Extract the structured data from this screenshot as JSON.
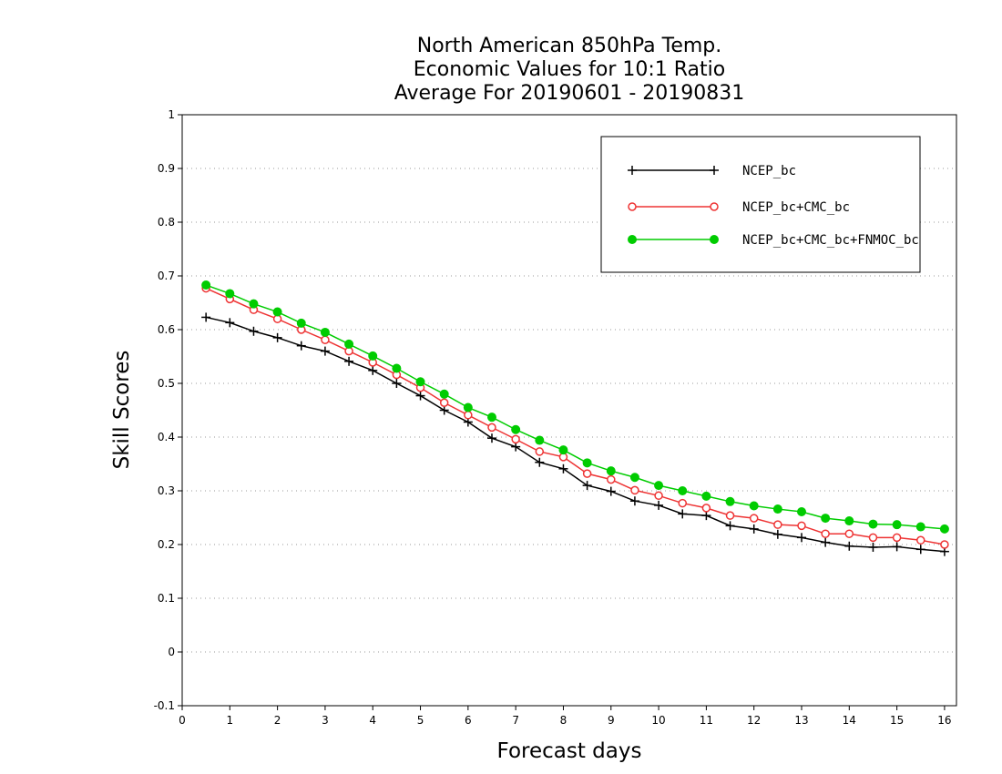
{
  "chart_data": {
    "type": "line",
    "title": [
      "North American 850hPa Temp.",
      "Economic Values for 10:1 Ratio",
      "Average For 20190601 - 20190831"
    ],
    "xlabel": "Forecast days",
    "ylabel": "Skill Scores",
    "xlim": [
      0,
      16.25
    ],
    "ylim": [
      -0.1,
      1.0
    ],
    "x_ticks": [
      "0",
      "1",
      "2",
      "3",
      "4",
      "5",
      "6",
      "7",
      "8",
      "9",
      "10",
      "11",
      "12",
      "13",
      "14",
      "15",
      "16"
    ],
    "y_ticks": [
      "-0.1",
      "0",
      "0.1",
      "0.2",
      "0.3",
      "0.4",
      "0.5",
      "0.6",
      "0.7",
      "0.8",
      "0.9",
      "1"
    ],
    "grid": "horizontal dotted",
    "legend_position": "top-right",
    "x": [
      0.5,
      1,
      1.5,
      2,
      2.5,
      3,
      3.5,
      4,
      4.5,
      5,
      5.5,
      6,
      6.5,
      7,
      7.5,
      8,
      8.5,
      9,
      9.5,
      10,
      10.5,
      11,
      11.5,
      12,
      12.5,
      13,
      13.5,
      14,
      14.5,
      15,
      15.5,
      16
    ],
    "series": [
      {
        "name": "NCEP_bc",
        "color": "#000000",
        "marker": "plus",
        "values": [
          0.623,
          0.613,
          0.597,
          0.585,
          0.57,
          0.56,
          0.541,
          0.524,
          0.5,
          0.477,
          0.45,
          0.428,
          0.398,
          0.382,
          0.353,
          0.341,
          0.31,
          0.299,
          0.281,
          0.273,
          0.257,
          0.254,
          0.235,
          0.229,
          0.219,
          0.213,
          0.204,
          0.197,
          0.195,
          0.196,
          0.191,
          0.187
        ]
      },
      {
        "name": "NCEP_bc+CMC_bc",
        "color": "#ee3333",
        "marker": "open-circle",
        "values": [
          0.677,
          0.657,
          0.637,
          0.62,
          0.6,
          0.581,
          0.56,
          0.539,
          0.516,
          0.492,
          0.464,
          0.441,
          0.418,
          0.396,
          0.373,
          0.363,
          0.332,
          0.321,
          0.301,
          0.291,
          0.277,
          0.268,
          0.254,
          0.249,
          0.237,
          0.235,
          0.22,
          0.22,
          0.213,
          0.213,
          0.208,
          0.2
        ]
      },
      {
        "name": "NCEP_bc+CMC_bc+FNMOC_bc",
        "color": "#00cc00",
        "marker": "filled-circle",
        "values": [
          0.683,
          0.667,
          0.648,
          0.633,
          0.612,
          0.595,
          0.573,
          0.551,
          0.528,
          0.503,
          0.48,
          0.455,
          0.437,
          0.414,
          0.394,
          0.376,
          0.352,
          0.337,
          0.325,
          0.31,
          0.3,
          0.29,
          0.28,
          0.272,
          0.266,
          0.261,
          0.249,
          0.244,
          0.238,
          0.237,
          0.233,
          0.229
        ]
      }
    ]
  }
}
